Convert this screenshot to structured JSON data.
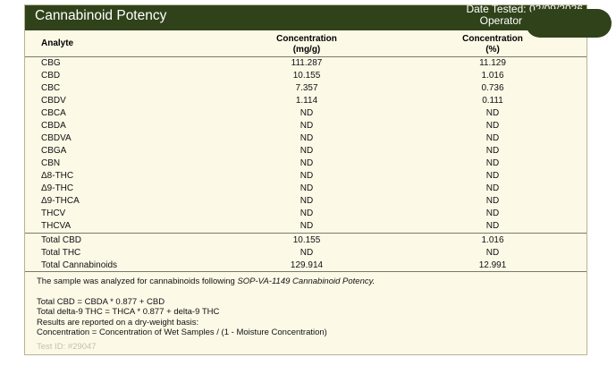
{
  "report": {
    "title": "Cannabinoid Potency",
    "date_tested_label": "Date Tested: 02/09/2026",
    "operator_label": "Operator"
  },
  "columns": {
    "analyte": "Analyte",
    "mg_line1": "Concentration",
    "mg_line2": "(mg/g)",
    "pct_line1": "Concentration",
    "pct_line2": "(%)"
  },
  "analytes": [
    {
      "name": "CBG",
      "mg": "111.287",
      "pct": "11.129"
    },
    {
      "name": "CBD",
      "mg": "10.155",
      "pct": "1.016"
    },
    {
      "name": "CBC",
      "mg": "7.357",
      "pct": "0.736"
    },
    {
      "name": "CBDV",
      "mg": "1.114",
      "pct": "0.111"
    },
    {
      "name": "CBCA",
      "mg": "ND",
      "pct": "ND"
    },
    {
      "name": "CBDA",
      "mg": "ND",
      "pct": "ND"
    },
    {
      "name": "CBDVA",
      "mg": "ND",
      "pct": "ND"
    },
    {
      "name": "CBGA",
      "mg": "ND",
      "pct": "ND"
    },
    {
      "name": "CBN",
      "mg": "ND",
      "pct": "ND"
    },
    {
      "name": "Δ8-THC",
      "mg": "ND",
      "pct": "ND"
    },
    {
      "name": "Δ9-THC",
      "mg": "ND",
      "pct": "ND"
    },
    {
      "name": "Δ9-THCA",
      "mg": "ND",
      "pct": "ND"
    },
    {
      "name": "THCV",
      "mg": "ND",
      "pct": "ND"
    },
    {
      "name": "THCVA",
      "mg": "ND",
      "pct": "ND"
    }
  ],
  "totals": [
    {
      "name": "Total CBD",
      "mg": "10.155",
      "pct": "1.016"
    },
    {
      "name": "Total THC",
      "mg": "ND",
      "pct": "ND"
    },
    {
      "name": "Total Cannabinoids",
      "mg": "129.914",
      "pct": "12.991"
    }
  ],
  "notes": {
    "intro_prefix": "The sample was analyzed for cannabinoids following ",
    "intro_sop": "SOP-VA-1149 Cannabinoid Potency.",
    "formula_cbd": "Total CBD = CBDA * 0.877 + CBD",
    "formula_thc": "Total delta-9 THC = THCA * 0.877 + delta-9 THC",
    "basis": "Results are reported on a dry-weight basis:",
    "concentration": "Concentration = Concentration of Wet Samples / (1 - Moisture Concentration)"
  },
  "test_id": "Test ID: #29047",
  "colors": {
    "header_bg": "#30421a",
    "panel_bg": "#fdf9e7",
    "muted_text": "#c4c0ae"
  }
}
